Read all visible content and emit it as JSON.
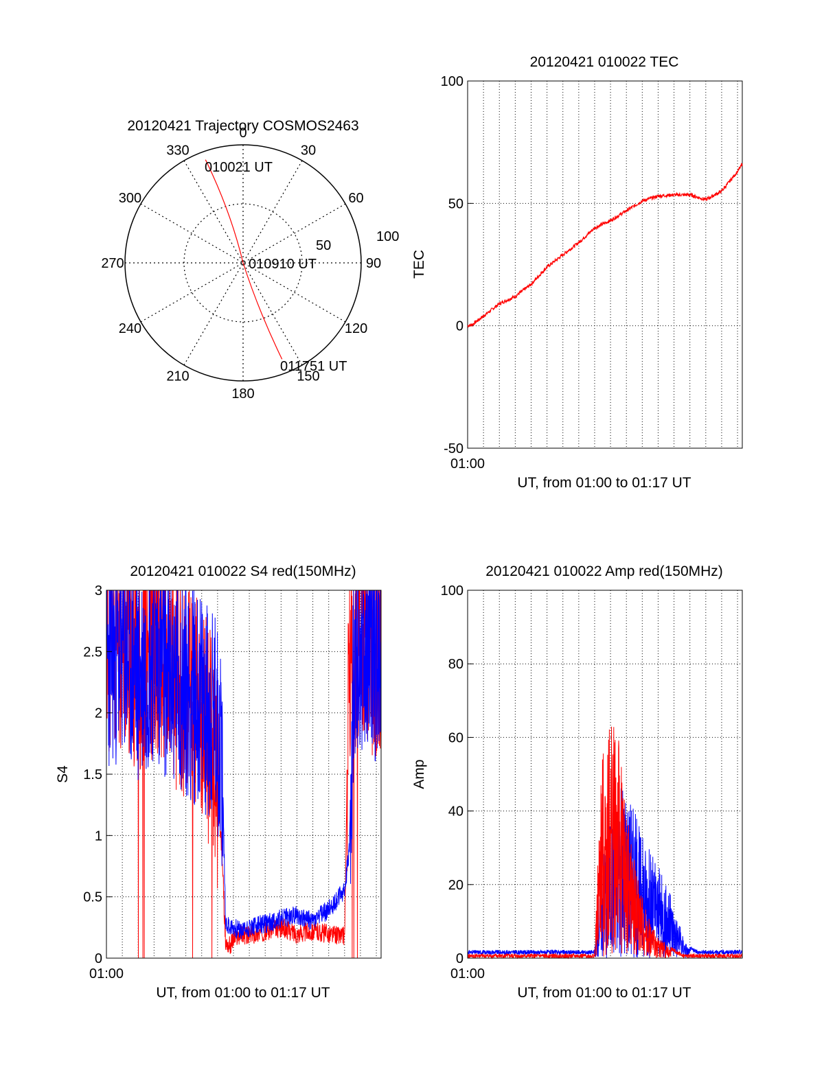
{
  "colors": {
    "red_series": "#ff0000",
    "blue_series": "#0000ff",
    "axes": "#000000",
    "background": "#ffffff"
  },
  "polar": {
    "title": "20120421 Trajectory COSMOS2463",
    "type": "polar",
    "azimuth_labels": [
      "0",
      "30",
      "60",
      "90",
      "120",
      "150",
      "180",
      "210",
      "240",
      "270",
      "300",
      "330"
    ],
    "radius_labels": [
      "50",
      "100"
    ],
    "points": [
      {
        "label": "010021 UT",
        "az": 340,
        "r": 0.93
      },
      {
        "label": "010910 UT",
        "az": 0,
        "r": 0
      },
      {
        "label": "011751 UT",
        "az": 158,
        "r": 0.88
      }
    ]
  },
  "tec": {
    "title": "20120421 010022 TEC",
    "ylabel": "TEC",
    "xlabel": "UT, from 01:00 to 01:17 UT",
    "x_start_label": "01:00",
    "ylim": [
      -50,
      100
    ],
    "yticks": [
      "-50",
      "0",
      "50",
      "100"
    ],
    "chart_data": {
      "type": "line",
      "x_minutes": [
        0,
        0.3,
        1,
        2,
        3,
        4,
        5,
        6,
        7,
        8,
        9,
        10,
        11,
        12,
        13,
        14,
        15,
        16,
        16.5,
        17,
        17.3
      ],
      "series": [
        {
          "values": [
            0,
            0.5,
            4,
            9,
            12,
            17,
            24,
            29,
            34,
            40,
            43,
            47,
            51,
            53,
            53.5,
            53.5,
            51.5,
            55,
            59,
            63,
            66
          ]
        }
      ]
    }
  },
  "s4": {
    "title": "20120421 010022 S4 red(150MHz)",
    "ylabel": "S4",
    "xlabel": "UT, from 01:00 to 01:17 UT",
    "x_start_label": "01:00",
    "ylim": [
      0,
      3
    ],
    "yticks": [
      "0",
      "0.5",
      "1",
      "1.5",
      "2",
      "2.5",
      "3"
    ],
    "chart_data": {
      "type": "line",
      "x_minutes": [
        0,
        1,
        2,
        3,
        4,
        5,
        6,
        6.5,
        7,
        7.3,
        7.5,
        7.8,
        8,
        8.5,
        9,
        10,
        11,
        12,
        13,
        14,
        15,
        15.3,
        15.6,
        16,
        17,
        17.3
      ],
      "series": [
        {
          "name": "red",
          "values": [
            2.5,
            2.6,
            2.4,
            2.5,
            2.3,
            2.2,
            2.0,
            1.8,
            1.4,
            0.8,
            0.12,
            0.1,
            0.15,
            0.2,
            0.18,
            0.22,
            0.25,
            0.2,
            0.22,
            0.2,
            0.18,
            2.5,
            2.6,
            2.7,
            2.5,
            2.6
          ]
        },
        {
          "name": "blue",
          "values": [
            2.4,
            2.5,
            2.3,
            2.5,
            2.3,
            2.2,
            2.1,
            2.0,
            1.9,
            1.6,
            0.3,
            0.25,
            0.25,
            0.22,
            0.25,
            0.28,
            0.32,
            0.35,
            0.3,
            0.4,
            0.55,
            0.9,
            2.5,
            2.6,
            2.5,
            2.6
          ]
        }
      ]
    }
  },
  "amp": {
    "title": "20120421 010022 Amp red(150MHz)",
    "ylabel": "Amp",
    "xlabel": "UT, from 01:00 to 01:17 UT",
    "x_start_label": "01:00",
    "ylim": [
      0,
      100
    ],
    "yticks": [
      "0",
      "20",
      "40",
      "60",
      "80",
      "100"
    ],
    "chart_data": {
      "type": "line",
      "x_minutes": [
        0,
        2,
        4,
        6,
        8,
        8.4,
        8.8,
        9.2,
        9.6,
        10,
        10.4,
        10.8,
        11.2,
        11.6,
        12,
        12.4,
        12.8,
        13.2,
        13.6,
        14,
        14.5,
        15,
        16,
        17,
        17.3
      ],
      "series": [
        {
          "name": "red",
          "values": [
            0,
            0,
            0,
            0,
            0,
            45,
            55,
            60,
            50,
            35,
            25,
            18,
            12,
            8,
            5,
            4,
            2,
            1,
            0,
            0,
            0,
            0,
            0,
            0,
            0
          ]
        },
        {
          "name": "blue",
          "values": [
            1,
            1,
            1,
            1,
            1,
            25,
            30,
            38,
            40,
            42,
            38,
            32,
            28,
            25,
            22,
            18,
            15,
            10,
            5,
            2,
            1,
            1,
            1,
            1,
            1
          ]
        }
      ]
    }
  }
}
